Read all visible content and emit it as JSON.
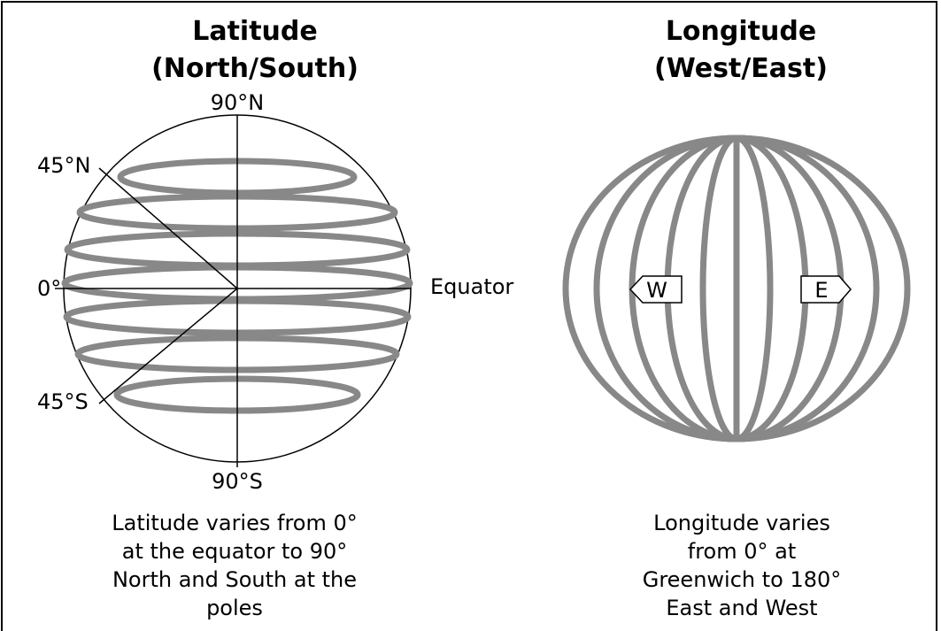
{
  "latitude": {
    "title": [
      "Latitude",
      "(North/South)"
    ],
    "labels": {
      "north_pole": "90°N",
      "north_45": "45°N",
      "equator_deg": "0°",
      "equator": "Equator",
      "south_45": "45°S",
      "south_pole": "90°S"
    },
    "caption": [
      "Latitude  varies from 0°",
      "at the equator to 90°",
      "North and South at the",
      "poles"
    ]
  },
  "longitude": {
    "title": [
      "Longitude",
      "(West/East)"
    ],
    "labels": {
      "west": "W",
      "east": "E"
    },
    "caption": [
      "Longitude  varies",
      "from 0° at",
      "Greenwich to 180°",
      "East and West"
    ]
  }
}
